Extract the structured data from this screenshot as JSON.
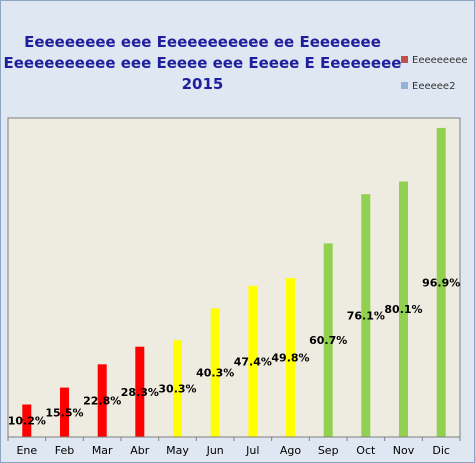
{
  "chart_data": {
    "type": "bar",
    "title_lines": [
      "Eeeeeeeee eee Eeeeeeeeeee ee Eeeeeeee",
      "Eeeeeeeeeee eee Eeeee eee Eeeee E Eeeeeeee",
      "2015"
    ],
    "categories": [
      "Ene",
      "Feb",
      "Mar",
      "Abr",
      "May",
      "Jun",
      "Jul",
      "Ago",
      "Sep",
      "Oct",
      "Nov",
      "Dic"
    ],
    "values": [
      10.2,
      15.5,
      22.8,
      28.3,
      30.3,
      40.3,
      47.4,
      49.8,
      60.7,
      76.1,
      80.1,
      96.9
    ],
    "data_labels": [
      "10.2%",
      "15.5%",
      "22.8%",
      "28.3%",
      "30.3%",
      "40.3%",
      "47.4%",
      "49.8%",
      "60.7%",
      "76.1%",
      "80.1%",
      "96.9%"
    ],
    "bar_colors": [
      "#ff0000",
      "#ff0000",
      "#ff0000",
      "#ff0000",
      "#ffff00",
      "#ffff00",
      "#ffff00",
      "#ffff00",
      "#92d050",
      "#92d050",
      "#92d050",
      "#92d050"
    ],
    "ylim": [
      0,
      100
    ],
    "legend": [
      {
        "name": "Eeeeeeeee",
        "color": "#c0504d"
      },
      {
        "name": "Eeeeee2",
        "color": "#95b3d7"
      }
    ],
    "legend_position": "right",
    "grid": false,
    "plot_background": "#eeece1"
  }
}
